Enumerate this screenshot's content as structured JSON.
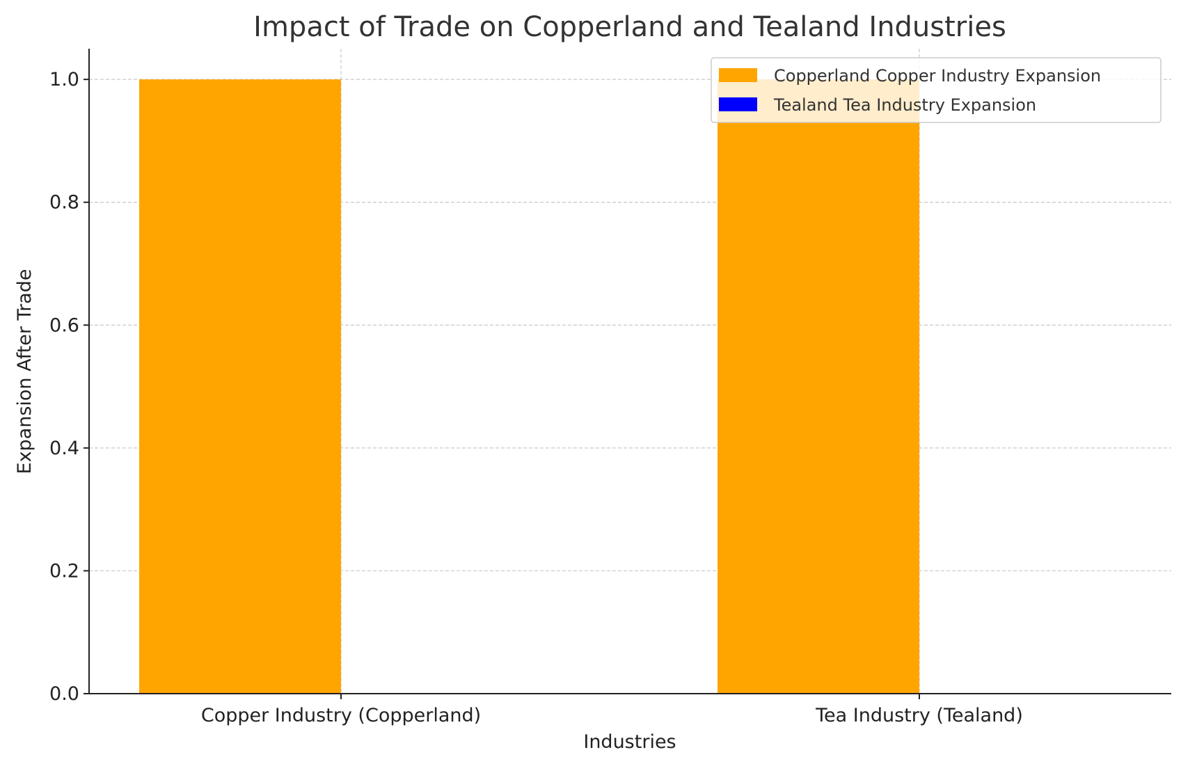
{
  "chart_data": {
    "type": "bar",
    "title": "Impact of Trade on Copperland and Tealand Industries",
    "xlabel": "Industries",
    "ylabel": "Expansion After Trade",
    "categories": [
      "Copper Industry (Copperland)",
      "Tea Industry (Tealand)"
    ],
    "series": [
      {
        "name": "Copperland Copper Industry Expansion",
        "values": [
          1,
          1
        ],
        "color": "#FFA500"
      },
      {
        "name": "Tealand Tea Industry Expansion",
        "values": [
          0,
          0
        ],
        "color": "#0000FF"
      }
    ],
    "ylim": [
      0,
      1.05
    ],
    "yticks": [
      "0.0",
      "0.2",
      "0.4",
      "0.6",
      "0.8",
      "1.0"
    ],
    "grid": true,
    "legend_position": "top-right"
  }
}
